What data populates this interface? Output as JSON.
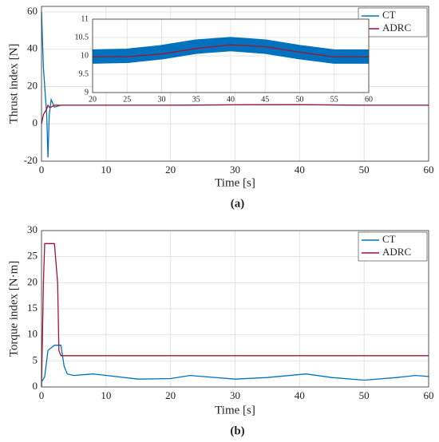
{
  "chart_data": [
    {
      "type": "line",
      "xlabel": "Time [s]",
      "ylabel": "Thrust index [N]",
      "caption": "(a)",
      "xlim": [
        0,
        60
      ],
      "ylim": [
        -20,
        63
      ],
      "xticks": [
        0,
        10,
        20,
        30,
        40,
        50,
        60
      ],
      "yticks": [
        -20,
        0,
        20,
        40,
        60
      ],
      "grid": true,
      "legend": "upper right",
      "x": [
        0,
        0.3,
        0.8,
        1.0,
        1.2,
        1.5,
        2,
        3,
        5,
        10,
        20,
        30,
        40,
        50,
        60
      ],
      "series": [
        {
          "name": "CT",
          "color": "#0072bd",
          "values": [
            60,
            30,
            5,
            -18,
            5,
            13,
            9,
            10,
            10,
            10,
            10,
            10.2,
            10.3,
            10,
            10
          ]
        },
        {
          "name": "ADRC",
          "color": "#a2142f",
          "values": [
            0,
            5,
            8,
            10,
            9,
            9,
            10,
            10,
            10,
            10,
            10,
            10.2,
            10.3,
            10,
            10
          ]
        }
      ]
    },
    {
      "type": "line",
      "xlim": [
        20,
        60
      ],
      "ylim": [
        9,
        11
      ],
      "xticks": [
        20,
        25,
        30,
        35,
        40,
        45,
        50,
        55,
        60
      ],
      "yticks": [
        9,
        9.5,
        10,
        10.5,
        11
      ],
      "grid": true,
      "x": [
        20,
        25,
        30,
        35,
        40,
        45,
        50,
        55,
        60
      ],
      "series": [
        {
          "name": "CT",
          "color": "#0072bd",
          "values": [
            9.98,
            10.0,
            10.1,
            10.25,
            10.32,
            10.25,
            10.1,
            9.98,
            9.98
          ]
        },
        {
          "name": "ADRC",
          "color": "#a2142f",
          "values": [
            9.97,
            9.98,
            10.05,
            10.2,
            10.3,
            10.25,
            10.1,
            9.97,
            9.97
          ]
        }
      ]
    },
    {
      "type": "line",
      "xlabel": "Time [s]",
      "ylabel": "Torque index [N·m]",
      "caption": "(b)",
      "xlim": [
        0,
        60
      ],
      "ylim": [
        0,
        30
      ],
      "xticks": [
        0,
        10,
        20,
        30,
        40,
        50,
        60
      ],
      "yticks": [
        0,
        5,
        10,
        15,
        20,
        25,
        30
      ],
      "grid": true,
      "legend": "upper right",
      "x": [
        0,
        0.3,
        0.5,
        1,
        1.5,
        2,
        2.5,
        2.7,
        3,
        3.5,
        4,
        5,
        8,
        15,
        20,
        23,
        30,
        35,
        41,
        45,
        50,
        55,
        58,
        60
      ],
      "series": [
        {
          "name": "CT",
          "color": "#0072bd",
          "values": [
            1,
            1.5,
            2,
            7,
            7.5,
            8,
            8,
            8,
            8,
            4,
            2.5,
            2.2,
            2.5,
            1.5,
            1.6,
            2.2,
            1.5,
            1.8,
            2.5,
            1.8,
            1.3,
            1.8,
            2.2,
            2
          ]
        },
        {
          "name": "ADRC",
          "color": "#a2142f",
          "values": [
            0,
            20,
            27.5,
            27.5,
            27.5,
            27.5,
            20,
            7,
            6,
            6,
            6,
            6,
            6,
            6,
            6,
            6,
            6,
            6,
            6,
            6,
            6,
            6,
            6,
            6
          ]
        }
      ]
    }
  ]
}
